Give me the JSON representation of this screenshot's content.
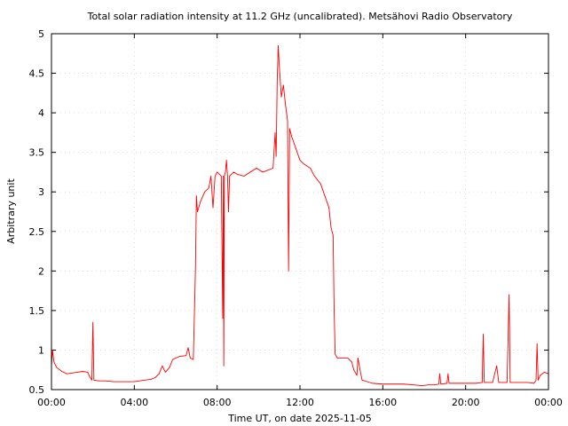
{
  "chart_data": {
    "type": "line",
    "title": "Total solar radiation intensity at 11.2 GHz (uncalibrated). Metsähovi Radio Observatory",
    "xlabel": "Time UT, on date 2025-11-05",
    "ylabel": "Arbitrary unit",
    "x_range_hours": [
      0,
      24
    ],
    "ylim": [
      0.5,
      5
    ],
    "x_ticks": [
      {
        "h": 0,
        "label": "00:00"
      },
      {
        "h": 4,
        "label": "04:00"
      },
      {
        "h": 8,
        "label": "08:00"
      },
      {
        "h": 12,
        "label": "12:00"
      },
      {
        "h": 16,
        "label": "16:00"
      },
      {
        "h": 20,
        "label": "20:00"
      },
      {
        "h": 24,
        "label": "00:00"
      }
    ],
    "y_ticks": [
      {
        "v": 0.5,
        "label": "0.5"
      },
      {
        "v": 1,
        "label": "1"
      },
      {
        "v": 1.5,
        "label": "1.5"
      },
      {
        "v": 2,
        "label": "2"
      },
      {
        "v": 2.5,
        "label": "2.5"
      },
      {
        "v": 3,
        "label": "3"
      },
      {
        "v": 3.5,
        "label": "3.5"
      },
      {
        "v": 4,
        "label": "4"
      },
      {
        "v": 4.5,
        "label": "4.5"
      },
      {
        "v": 5,
        "label": "5"
      }
    ],
    "grid": true,
    "line_color": "#ff0000",
    "series": [
      {
        "points": [
          [
            0.0,
            0.8
          ],
          [
            0.05,
            1.0
          ],
          [
            0.12,
            0.85
          ],
          [
            0.25,
            0.78
          ],
          [
            0.5,
            0.73
          ],
          [
            0.75,
            0.7
          ],
          [
            1.0,
            0.71
          ],
          [
            1.25,
            0.72
          ],
          [
            1.5,
            0.73
          ],
          [
            1.75,
            0.72
          ],
          [
            1.85,
            0.66
          ],
          [
            1.95,
            0.62
          ],
          [
            2.0,
            1.35
          ],
          [
            2.05,
            0.62
          ],
          [
            2.3,
            0.61
          ],
          [
            2.6,
            0.61
          ],
          [
            3.0,
            0.6
          ],
          [
            3.5,
            0.6
          ],
          [
            4.0,
            0.6
          ],
          [
            4.5,
            0.62
          ],
          [
            4.8,
            0.63
          ],
          [
            5.0,
            0.65
          ],
          [
            5.2,
            0.7
          ],
          [
            5.35,
            0.8
          ],
          [
            5.5,
            0.72
          ],
          [
            5.7,
            0.78
          ],
          [
            5.85,
            0.88
          ],
          [
            6.0,
            0.9
          ],
          [
            6.2,
            0.92
          ],
          [
            6.5,
            0.93
          ],
          [
            6.6,
            1.03
          ],
          [
            6.7,
            0.9
          ],
          [
            6.85,
            0.88
          ],
          [
            6.95,
            2.0
          ],
          [
            7.0,
            2.95
          ],
          [
            7.05,
            2.75
          ],
          [
            7.2,
            2.88
          ],
          [
            7.4,
            3.0
          ],
          [
            7.6,
            3.05
          ],
          [
            7.7,
            3.2
          ],
          [
            7.8,
            2.8
          ],
          [
            7.9,
            3.2
          ],
          [
            8.0,
            3.25
          ],
          [
            8.2,
            3.2
          ],
          [
            8.27,
            1.4
          ],
          [
            8.3,
            3.2
          ],
          [
            8.32,
            0.8
          ],
          [
            8.35,
            3.2
          ],
          [
            8.4,
            3.25
          ],
          [
            8.45,
            3.4
          ],
          [
            8.5,
            3.2
          ],
          [
            8.55,
            2.75
          ],
          [
            8.6,
            3.2
          ],
          [
            8.8,
            3.25
          ],
          [
            9.0,
            3.22
          ],
          [
            9.3,
            3.2
          ],
          [
            9.6,
            3.25
          ],
          [
            9.9,
            3.3
          ],
          [
            10.2,
            3.25
          ],
          [
            10.5,
            3.28
          ],
          [
            10.7,
            3.3
          ],
          [
            10.8,
            3.75
          ],
          [
            10.85,
            3.45
          ],
          [
            10.9,
            4.4
          ],
          [
            10.95,
            4.85
          ],
          [
            11.0,
            4.6
          ],
          [
            11.1,
            4.2
          ],
          [
            11.2,
            4.35
          ],
          [
            11.3,
            4.1
          ],
          [
            11.4,
            3.9
          ],
          [
            11.45,
            2.0
          ],
          [
            11.5,
            3.8
          ],
          [
            11.6,
            3.7
          ],
          [
            11.8,
            3.55
          ],
          [
            12.0,
            3.4
          ],
          [
            12.2,
            3.35
          ],
          [
            12.5,
            3.3
          ],
          [
            12.7,
            3.2
          ],
          [
            13.0,
            3.1
          ],
          [
            13.2,
            2.95
          ],
          [
            13.4,
            2.8
          ],
          [
            13.5,
            2.55
          ],
          [
            13.6,
            2.45
          ],
          [
            13.65,
            1.5
          ],
          [
            13.7,
            0.95
          ],
          [
            13.8,
            0.9
          ],
          [
            14.0,
            0.9
          ],
          [
            14.3,
            0.9
          ],
          [
            14.5,
            0.85
          ],
          [
            14.6,
            0.75
          ],
          [
            14.75,
            0.68
          ],
          [
            14.8,
            0.9
          ],
          [
            14.9,
            0.75
          ],
          [
            15.0,
            0.62
          ],
          [
            15.5,
            0.58
          ],
          [
            16.0,
            0.57
          ],
          [
            16.5,
            0.57
          ],
          [
            17.0,
            0.57
          ],
          [
            17.5,
            0.56
          ],
          [
            17.9,
            0.55
          ],
          [
            18.2,
            0.56
          ],
          [
            18.5,
            0.56
          ],
          [
            18.7,
            0.57
          ],
          [
            18.75,
            0.7
          ],
          [
            18.8,
            0.57
          ],
          [
            19.1,
            0.58
          ],
          [
            19.15,
            0.7
          ],
          [
            19.2,
            0.58
          ],
          [
            19.5,
            0.58
          ],
          [
            20.0,
            0.58
          ],
          [
            20.5,
            0.58
          ],
          [
            20.8,
            0.59
          ],
          [
            20.85,
            1.2
          ],
          [
            20.9,
            0.59
          ],
          [
            21.3,
            0.59
          ],
          [
            21.5,
            0.8
          ],
          [
            21.6,
            0.59
          ],
          [
            22.0,
            0.59
          ],
          [
            22.1,
            1.7
          ],
          [
            22.15,
            0.59
          ],
          [
            22.5,
            0.59
          ],
          [
            23.0,
            0.59
          ],
          [
            23.3,
            0.58
          ],
          [
            23.4,
            0.62
          ],
          [
            23.45,
            1.08
          ],
          [
            23.5,
            0.62
          ],
          [
            23.6,
            0.68
          ],
          [
            23.8,
            0.72
          ],
          [
            24.0,
            0.7
          ]
        ]
      }
    ]
  }
}
